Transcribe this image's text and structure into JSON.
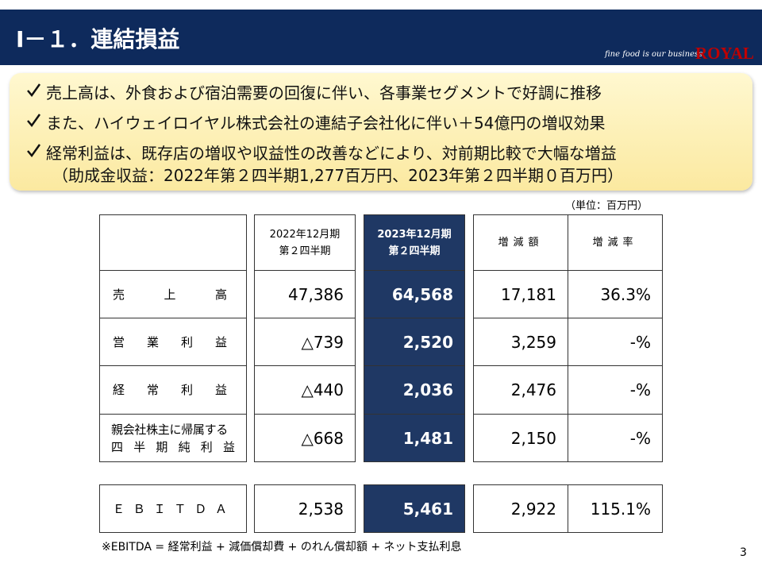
{
  "header": {
    "title": "Ⅰ－１．連結損益",
    "tagline": "fine food is our business",
    "logo": "ROYAL"
  },
  "bullets": [
    {
      "text": "売上高は、外食および宿泊需要の回復に伴い、各事業セグメントで好調に推移"
    },
    {
      "text": "また、ハイウェイロイヤル株式会社の連結子会社化に伴い＋54億円の増収効果"
    },
    {
      "text": "経常利益は、既存店の増収や収益性の改善などにより、対前期比較で大幅な増益",
      "note": "（助成金収益：2022年第２四半期1,277百万円、2023年第２四半期０百万円）"
    }
  ],
  "unit": "（単位：百万円）",
  "table": {
    "columns": [
      [
        "2022年12月期",
        "第２四半期"
      ],
      [
        "2023年12月期",
        "第２四半期"
      ],
      [
        "増減額"
      ],
      [
        "増減率"
      ]
    ],
    "rows": [
      {
        "label": [
          "売上高"
        ],
        "values": [
          "47,386",
          "64,568",
          "17,181",
          "36.3%"
        ]
      },
      {
        "label": [
          "営業利益"
        ],
        "values": [
          "△739",
          "2,520",
          "3,259",
          "-%"
        ]
      },
      {
        "label": [
          "経常利益"
        ],
        "values": [
          "△440",
          "2,036",
          "2,476",
          "-%"
        ]
      },
      {
        "label": [
          "親会社株主に帰属する",
          "四半期純利益"
        ],
        "values": [
          "△668",
          "1,481",
          "2,150",
          "-%"
        ]
      },
      {
        "label": [
          "ＥＢＩＴＤＡ"
        ],
        "values": [
          "2,538",
          "5,461",
          "2,922",
          "115.1%"
        ]
      }
    ]
  },
  "footnote": "※EBITDA = 経常利益 + 減価償却費 + のれん償却額 + ネット支払利息",
  "page_number": "3"
}
